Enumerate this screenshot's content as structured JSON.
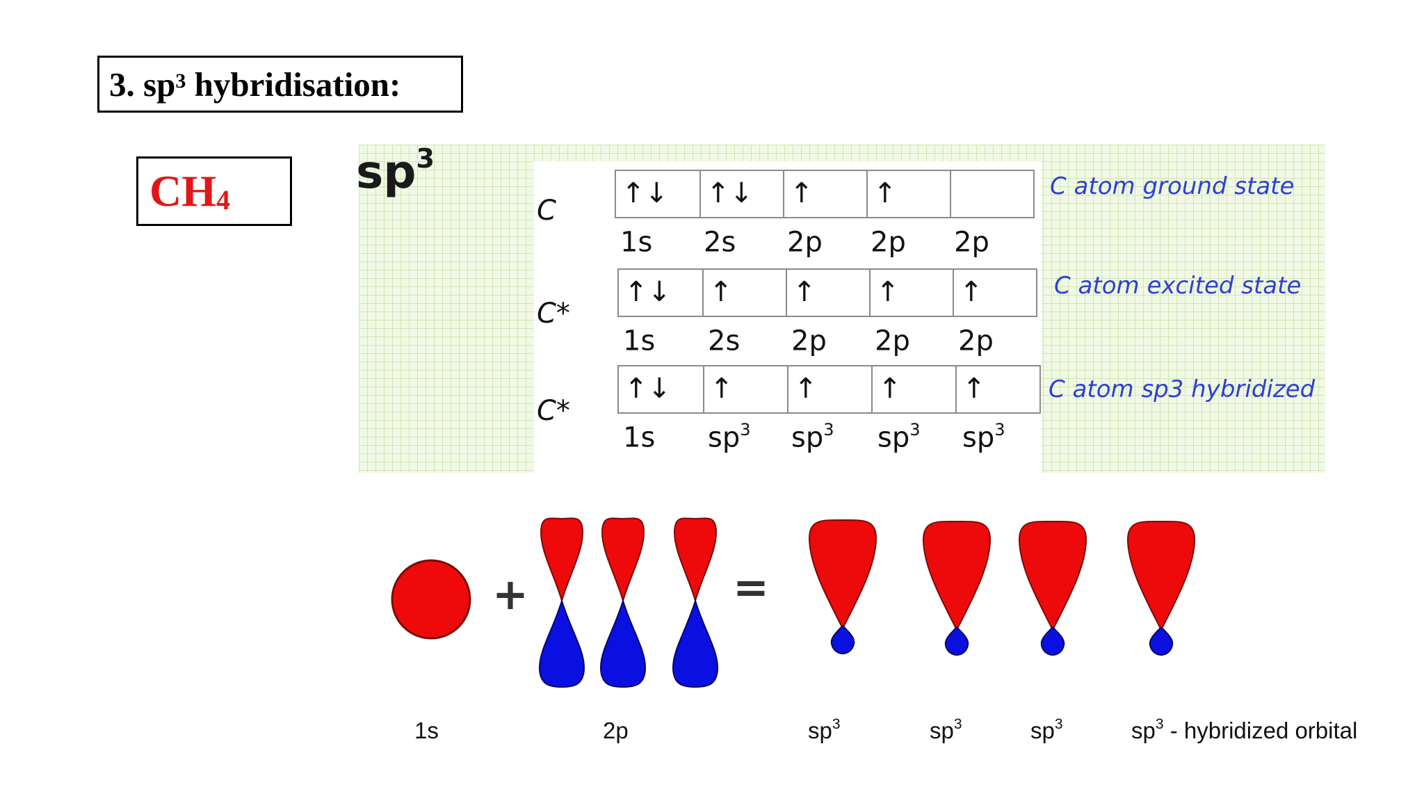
{
  "slide": {
    "title_prefix": "3. sp",
    "title_sup": "3",
    "title_suffix": " hybridisation:",
    "formula_main": "CH",
    "formula_sub": "4"
  },
  "diagram": {
    "heading_main": "sp",
    "heading_sup": "3",
    "rows": [
      {
        "atom": "C",
        "state_label": "C atom ground state",
        "boxes": [
          "↑↓",
          "↑↓",
          "↑",
          "↑",
          ""
        ],
        "names": [
          {
            "main": "1s",
            "sup": ""
          },
          {
            "main": "2s",
            "sup": ""
          },
          {
            "main": "2p",
            "sup": ""
          },
          {
            "main": "2p",
            "sup": ""
          },
          {
            "main": "2p",
            "sup": ""
          }
        ]
      },
      {
        "atom": "C*",
        "state_label": "C atom excited state",
        "boxes": [
          "↑↓",
          "↑",
          "↑",
          "↑",
          "↑"
        ],
        "names": [
          {
            "main": "1s",
            "sup": ""
          },
          {
            "main": "2s",
            "sup": ""
          },
          {
            "main": "2p",
            "sup": ""
          },
          {
            "main": "2p",
            "sup": ""
          },
          {
            "main": "2p",
            "sup": ""
          }
        ]
      },
      {
        "atom": "C*",
        "state_label": "C atom sp3 hybridized",
        "boxes": [
          "↑↓",
          "↑",
          "↑",
          "↑",
          "↑"
        ],
        "names": [
          {
            "main": "1s",
            "sup": ""
          },
          {
            "main": "sp",
            "sup": "3"
          },
          {
            "main": "sp",
            "sup": "3"
          },
          {
            "main": "sp",
            "sup": "3"
          },
          {
            "main": "sp",
            "sup": "3"
          }
        ]
      }
    ]
  },
  "orbitals": {
    "plus": "+",
    "equals": "=",
    "colors": {
      "positive_lobe": "#ee0a0a",
      "negative_lobe": "#0a10e0",
      "outline": "#7a0a0a"
    },
    "labels": [
      {
        "main": "1s",
        "sup": "",
        "suffix": ""
      },
      {
        "main": "2p",
        "sup": "",
        "suffix": ""
      },
      {
        "main": "sp",
        "sup": "3",
        "suffix": ""
      },
      {
        "main": "sp",
        "sup": "3",
        "suffix": ""
      },
      {
        "main": "sp",
        "sup": "3",
        "suffix": ""
      },
      {
        "main": "sp",
        "sup": "3",
        "suffix": " - hybridized orbital"
      }
    ]
  }
}
